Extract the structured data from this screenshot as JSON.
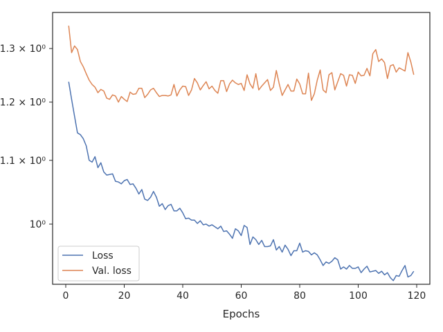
{
  "chart_data": {
    "type": "line",
    "title": "",
    "xlabel": "Epochs",
    "ylabel": "",
    "yscale": "log",
    "xlim": [
      -4.5,
      124.5
    ],
    "ylim": [
      0.914,
      1.372
    ],
    "x_ticks": [
      0,
      20,
      40,
      60,
      80,
      100,
      120
    ],
    "y_ticks": [
      {
        "value": 1.0,
        "label": "10⁰"
      },
      {
        "value": 1.1,
        "label": "1.1 × 10⁰"
      },
      {
        "value": 1.2,
        "label": "1.2 × 10⁰"
      },
      {
        "value": 1.3,
        "label": "1.3 × 10⁰"
      }
    ],
    "grid": false,
    "legend_position": "lower-left",
    "series": [
      {
        "name": "Loss",
        "color": "#4c72b0",
        "start_epoch": 1,
        "values": [
          1.237,
          1.205,
          1.175,
          1.146,
          1.143,
          1.136,
          1.124,
          1.1,
          1.097,
          1.106,
          1.088,
          1.096,
          1.081,
          1.076,
          1.077,
          1.078,
          1.066,
          1.065,
          1.062,
          1.067,
          1.069,
          1.061,
          1.062,
          1.055,
          1.046,
          1.053,
          1.038,
          1.036,
          1.041,
          1.05,
          1.041,
          1.027,
          1.031,
          1.022,
          1.028,
          1.03,
          1.02,
          1.02,
          1.024,
          1.017,
          1.008,
          1.009,
          1.006,
          1.006,
          1.001,
          1.005,
          0.999,
          1.0,
          0.997,
          0.999,
          0.996,
          0.993,
          0.997,
          0.989,
          0.99,
          0.985,
          0.979,
          0.993,
          0.99,
          0.983,
          0.998,
          0.995,
          0.97,
          0.981,
          0.977,
          0.97,
          0.976,
          0.967,
          0.967,
          0.968,
          0.977,
          0.962,
          0.967,
          0.959,
          0.969,
          0.963,
          0.954,
          0.961,
          0.961,
          0.972,
          0.959,
          0.961,
          0.96,
          0.955,
          0.958,
          0.955,
          0.948,
          0.94,
          0.945,
          0.943,
          0.946,
          0.951,
          0.948,
          0.935,
          0.938,
          0.935,
          0.94,
          0.936,
          0.936,
          0.938,
          0.93,
          0.935,
          0.939,
          0.931,
          0.932,
          0.933,
          0.929,
          0.932,
          0.927,
          0.93,
          0.923,
          0.919,
          0.926,
          0.925,
          0.933,
          0.94,
          0.924,
          0.926,
          0.932
        ]
      },
      {
        "name": "Val. loss",
        "color": "#dd8452",
        "start_epoch": 1,
        "values": [
          1.345,
          1.292,
          1.305,
          1.298,
          1.275,
          1.265,
          1.252,
          1.24,
          1.232,
          1.227,
          1.217,
          1.223,
          1.22,
          1.207,
          1.205,
          1.213,
          1.211,
          1.2,
          1.21,
          1.205,
          1.201,
          1.218,
          1.214,
          1.215,
          1.225,
          1.225,
          1.208,
          1.214,
          1.222,
          1.225,
          1.217,
          1.21,
          1.212,
          1.212,
          1.211,
          1.213,
          1.232,
          1.211,
          1.222,
          1.229,
          1.228,
          1.212,
          1.222,
          1.243,
          1.235,
          1.222,
          1.23,
          1.237,
          1.224,
          1.229,
          1.221,
          1.216,
          1.239,
          1.239,
          1.219,
          1.233,
          1.24,
          1.235,
          1.232,
          1.234,
          1.221,
          1.25,
          1.233,
          1.225,
          1.252,
          1.222,
          1.229,
          1.235,
          1.241,
          1.221,
          1.227,
          1.258,
          1.233,
          1.212,
          1.222,
          1.232,
          1.22,
          1.22,
          1.242,
          1.233,
          1.215,
          1.215,
          1.253,
          1.203,
          1.215,
          1.24,
          1.259,
          1.222,
          1.217,
          1.25,
          1.254,
          1.222,
          1.237,
          1.252,
          1.249,
          1.229,
          1.25,
          1.249,
          1.234,
          1.255,
          1.248,
          1.249,
          1.262,
          1.248,
          1.29,
          1.298,
          1.275,
          1.28,
          1.273,
          1.243,
          1.267,
          1.269,
          1.255,
          1.263,
          1.26,
          1.257,
          1.292,
          1.274,
          1.25
        ]
      }
    ]
  }
}
